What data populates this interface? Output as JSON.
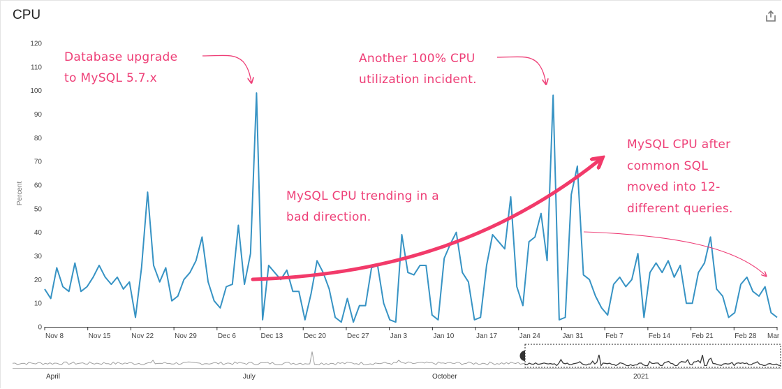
{
  "header": {
    "title": "CPU",
    "share_icon": "share-icon"
  },
  "colors": {
    "series": "#3793c4",
    "annotation": "#ee3f77",
    "navigator_bg": "#8a8a8a",
    "navigator_fg": "#3b3b3b"
  },
  "chart_data": {
    "type": "line",
    "ylabel": "Percent",
    "ylim": [
      0,
      120
    ],
    "yticks": [
      0,
      10,
      20,
      30,
      40,
      50,
      60,
      70,
      80,
      90,
      100,
      110,
      120
    ],
    "grid": false,
    "x_range": [
      "Nov 8",
      "Mar 2"
    ],
    "x_ticks": [
      "Nov 8",
      "Nov 15",
      "Nov 22",
      "Nov 29",
      "Dec 6",
      "Dec 13",
      "Dec 20",
      "Dec 27",
      "Jan 3",
      "Jan 10",
      "Jan 17",
      "Jan 24",
      "Jan 31",
      "Feb 7",
      "Feb 14",
      "Feb 21",
      "Feb 28",
      "Mar"
    ],
    "series": [
      {
        "values": [
          16,
          12,
          25,
          17,
          15,
          27,
          15,
          17,
          21,
          26,
          21,
          18,
          21,
          16,
          19,
          4,
          25,
          57,
          26,
          19,
          25,
          11,
          13,
          20,
          23,
          28,
          38,
          19,
          11,
          8,
          17,
          18,
          43,
          18,
          31,
          99,
          3,
          26,
          23,
          20,
          24,
          15,
          15,
          3,
          14,
          28,
          23,
          16,
          4,
          2,
          12,
          2,
          9,
          9,
          25,
          26,
          10,
          3,
          2,
          39,
          23,
          22,
          26,
          26,
          5,
          3,
          29,
          35,
          40,
          23,
          19,
          3,
          4,
          26,
          39,
          36,
          33,
          55,
          17,
          9,
          36,
          38,
          48,
          28,
          98,
          3,
          4,
          56,
          68,
          22,
          20,
          13,
          8,
          5,
          18,
          21,
          17,
          20,
          31,
          4,
          23,
          27,
          23,
          28,
          21,
          26,
          10,
          10,
          23,
          27,
          38,
          16,
          13,
          4,
          6,
          18,
          21,
          15,
          13,
          17,
          6,
          4
        ]
      }
    ],
    "annotations": [
      {
        "lines": [
          "Database upgrade",
          "to MySQL 5.7.x"
        ]
      },
      {
        "lines": [
          "Another 100% CPU",
          "utilization incident."
        ]
      },
      {
        "lines": [
          "MySQL CPU trending in a",
          "bad direction."
        ]
      },
      {
        "lines": [
          "MySQL CPU after",
          "common SQL",
          "moved into 12-",
          "different queries."
        ]
      }
    ],
    "navigator": {
      "labels": [
        "April",
        "July",
        "October",
        "2021"
      ]
    }
  }
}
